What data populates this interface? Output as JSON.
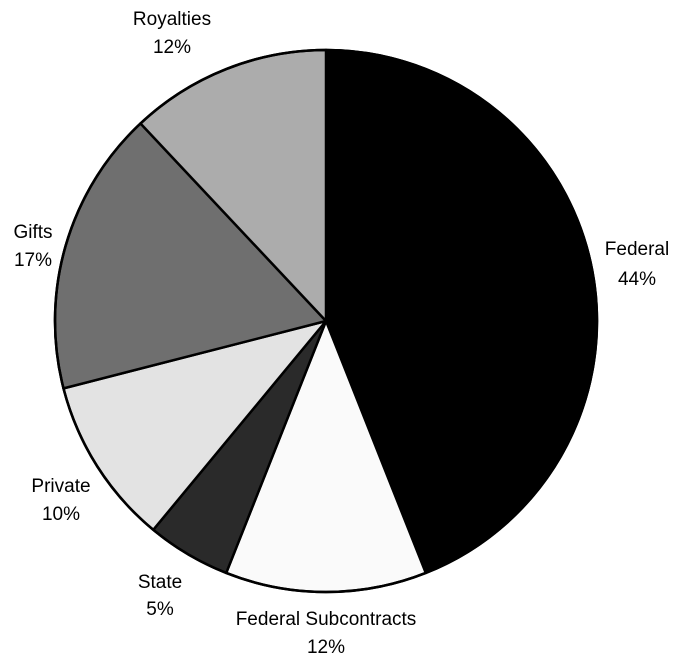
{
  "chart_data": {
    "type": "pie",
    "start_angle_deg": 0,
    "direction": "clockwise",
    "border_color": "#000000",
    "slices": [
      {
        "label": "Federal",
        "percent_label": "44%",
        "value": 44,
        "color": "#000000"
      },
      {
        "label": "Federal Subcontracts",
        "percent_label": "12%",
        "value": 12,
        "color": "#fafafa"
      },
      {
        "label": "State",
        "percent_label": "5%",
        "value": 5,
        "color": "#2a2a2a"
      },
      {
        "label": "Private",
        "percent_label": "10%",
        "value": 10,
        "color": "#e3e3e3"
      },
      {
        "label": "Gifts",
        "percent_label": "17%",
        "value": 17,
        "color": "#6f6f6f"
      },
      {
        "label": "Royalties",
        "percent_label": "12%",
        "value": 12,
        "color": "#acacac"
      }
    ]
  }
}
